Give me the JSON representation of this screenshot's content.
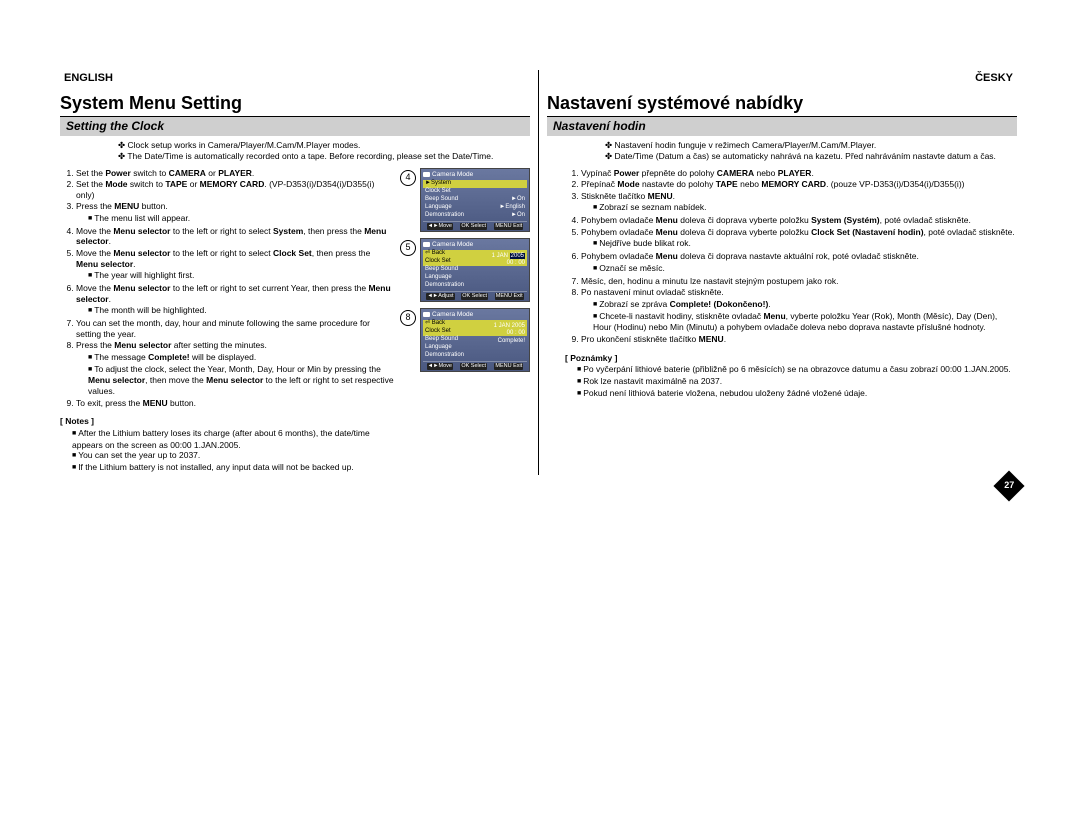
{
  "page_number": "27",
  "colors": {
    "subheading_bg": "#cfcfcf",
    "lcd_bg_top": "#6a78a0",
    "lcd_bg_bottom": "#4a5880",
    "highlight": "#d0d040",
    "date_box": "#001040"
  },
  "left": {
    "lang": "ENGLISH",
    "heading": "System Menu Setting",
    "sub": "Setting the Clock",
    "intro": [
      "Clock setup works in Camera/Player/M.Cam/M.Player modes.",
      "The Date/Time is automatically recorded onto a tape. Before recording, please set the Date/Time."
    ],
    "steps": [
      "Set the <b>Power</b> switch to <b>CAMERA</b> or <b>PLAYER</b>.",
      "Set the <b>Mode</b> switch to <b>TAPE</b> or <b>MEMORY CARD</b>. (VP-D353(i)/D354(i)/D355(i) only)",
      "Press the <b>MENU</b> button.<ul class='sq'><li>The menu list will appear.</li></ul>",
      "Move the <b>Menu selector</b> to the left or right to select <b>System</b>, then press the <b>Menu selector</b>.",
      "Move the <b>Menu selector</b> to the left or right to select <b>Clock Set</b>, then press the <b>Menu selector</b>.<ul class='sq'><li>The year will highlight first.</li></ul>",
      "Move the <b>Menu selector</b> to the left or right to set current Year, then press the <b>Menu selector</b>.<ul class='sq'><li>The month will be highlighted.</li></ul>",
      "You can set the month, day, hour and minute following the same procedure for setting the year.",
      "Press the <b>Menu selector</b> after setting the minutes.<ul class='sq'><li>The message <b>Complete!</b> will be displayed.</li><li>To adjust the clock, select the Year, Month, Day, Hour or Min by pressing the <b>Menu selector</b>, then move the <b>Menu selector</b> to the left or right to set respective values.</li></ul>",
      "To exit, press the <b>MENU</b> button."
    ],
    "notes_label": "[ Notes ]",
    "notes": [
      "After the Lithium battery loses its charge (after about 6 months), the date/time appears on the screen as 00:00 1.JAN.2005.",
      "You can set the year up to 2037.",
      "If the Lithium battery is not installed, any input data will not be backed up."
    ]
  },
  "right": {
    "lang": "ČESKY",
    "heading": "Nastavení systémové nabídky",
    "sub": "Nastavení hodin",
    "intro": [
      "Nastavení hodin funguje v režimech Camera/Player/M.Cam/M.Player.",
      "Date/Time (Datum a čas) se automaticky nahrává na kazetu. Před nahráváním nastavte datum a čas."
    ],
    "steps": [
      "Vypínač <b>Power</b> přepněte do polohy <b>CAMERA</b> nebo <b>PLAYER</b>.",
      "Přepínač <b>Mode</b> nastavte do polohy <b>TAPE</b> nebo <b>MEMORY CARD</b>. (pouze VP-D353(i)/D354(i)/D355(i))",
      "Stiskněte tlačítko <b>MENU</b>.<ul class='sq'><li>Zobrazí se seznam nabídek.</li></ul>",
      "Pohybem ovladače <b>Menu</b> doleva či doprava vyberte položku <b>System (Systém)</b>, poté ovladač stiskněte.",
      "Pohybem ovladače <b>Menu</b> doleva či doprava vyberte položku <b>Clock Set (Nastavení hodin)</b>, poté ovladač stiskněte.<ul class='sq'><li>Nejdříve bude blikat rok.</li></ul>",
      "Pohybem ovladače <b>Menu</b> doleva či doprava nastavte aktuální rok, poté ovladač stiskněte.<ul class='sq'><li>Označí se měsíc.</li></ul>",
      "Měsíc, den, hodinu a minutu lze nastavit stejným postupem jako rok.",
      "Po nastavení minut ovladač stiskněte.<ul class='sq'><li>Zobrazí se zpráva <b>Complete! (Dokončeno!)</b>.</li><li>Chcete-li nastavit hodiny, stiskněte ovladač <b>Menu</b>, vyberte položku Year (Rok), Month (Měsíc), Day (Den), Hour (Hodinu) nebo Min (Minutu) a pohybem ovladače doleva nebo doprava nastavte příslušné hodnoty.</li></ul>",
      "Pro ukončení stiskněte tlačítko <b>MENU</b>."
    ],
    "notes_label": "[ Poznámky ]",
    "notes": [
      "Po vyčerpání lithiové baterie (přibližně po 6 měsících) se na obrazovce datumu a času zobrazí 00:00 1.JAN.2005.",
      "Rok lze nastavit maximálně na 2037.",
      "Pokud není lithiová baterie vložena, nebudou uloženy žádné vložené údaje."
    ]
  },
  "figs": [
    {
      "num": "4",
      "title": "Camera Mode",
      "back": "►System",
      "rows": [
        {
          "l": "Clock Set",
          "r": "",
          "hl": false
        },
        {
          "l": "Beep Sound",
          "r": "►On",
          "hl": false
        },
        {
          "l": "Language",
          "r": "►English",
          "hl": false
        },
        {
          "l": "Demonstration",
          "r": "►On",
          "hl": false
        }
      ],
      "foot": [
        "◄►Move",
        "OK Select",
        "MENU Exit"
      ],
      "date": null
    },
    {
      "num": "5",
      "title": "Camera Mode",
      "back": "⏎ Back",
      "rows": [
        {
          "l": "Clock Set",
          "r": "",
          "hl": true
        },
        {
          "l": "Beep Sound",
          "r": "",
          "hl": false
        },
        {
          "l": "Language",
          "r": "",
          "hl": false
        },
        {
          "l": "Demonstration",
          "r": "",
          "hl": false
        }
      ],
      "foot": [
        "◄►Adjust",
        "OK Select",
        "MENU Exit"
      ],
      "date": {
        "line1": "1  JAN",
        "year": "2005",
        "line2": "00 : 00",
        "extra": ""
      }
    },
    {
      "num": "8",
      "title": "Camera Mode",
      "back": "⏎ Back",
      "rows": [
        {
          "l": "Clock Set",
          "r": "",
          "hl": true
        },
        {
          "l": "Beep Sound",
          "r": "",
          "hl": false
        },
        {
          "l": "Language",
          "r": "",
          "hl": false
        },
        {
          "l": "Demonstration",
          "r": "",
          "hl": false
        }
      ],
      "foot": [
        "◄►Move",
        "OK Select",
        "MENU Exit"
      ],
      "date": {
        "line1": "1  JAN  2005",
        "year": "",
        "line2": "00 : 00",
        "extra": "Complete!"
      }
    }
  ]
}
